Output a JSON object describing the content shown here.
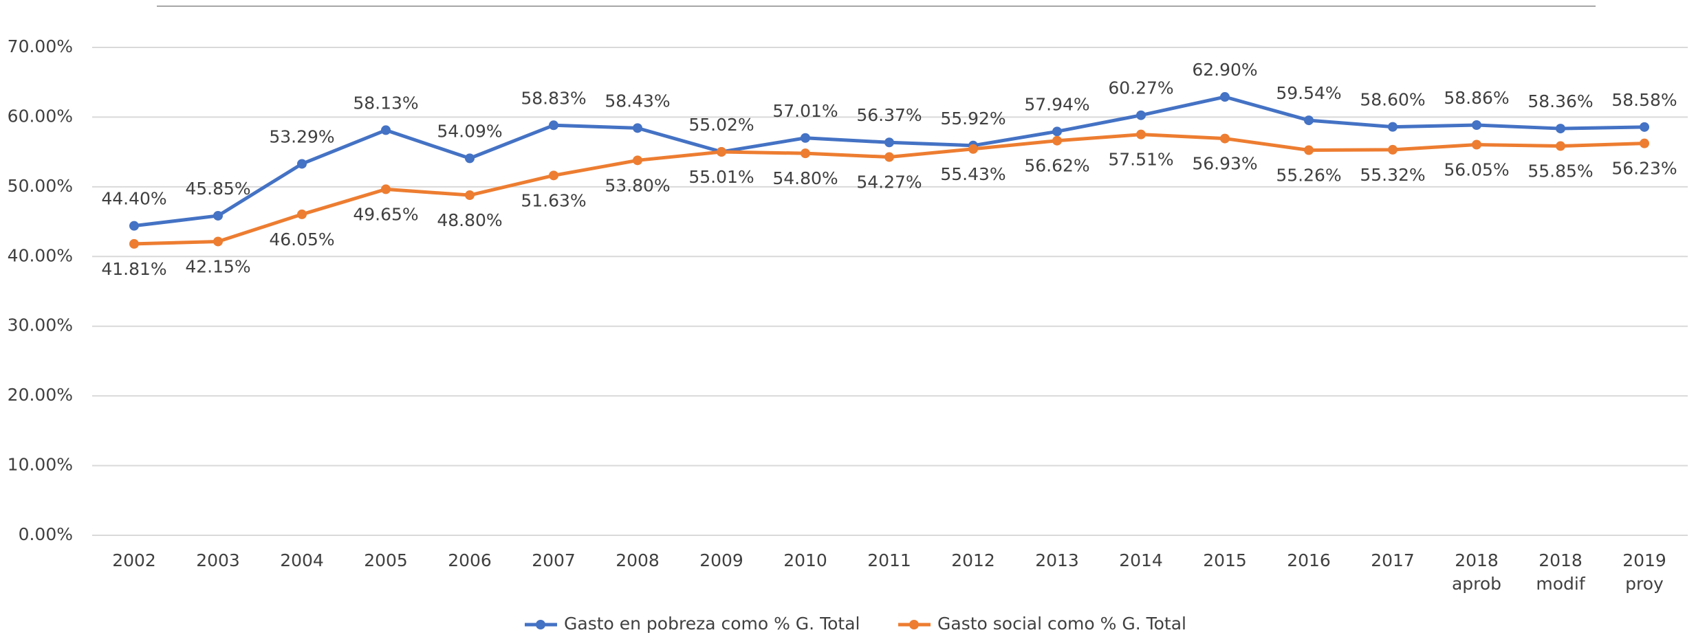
{
  "chart_data": {
    "type": "line",
    "categories": [
      "2002",
      "2003",
      "2004",
      "2005",
      "2006",
      "2007",
      "2008",
      "2009",
      "2010",
      "2011",
      "2012",
      "2013",
      "2014",
      "2015",
      "2016",
      "2017",
      "2018 aprob",
      "2018 modif",
      "2019 proy"
    ],
    "series": [
      {
        "name": "Gasto en pobreza como % G. Total",
        "color": "#4472c4",
        "values": [
          44.4,
          45.85,
          53.29,
          58.13,
          54.09,
          58.83,
          58.43,
          55.02,
          57.01,
          56.37,
          55.92,
          57.94,
          60.27,
          62.9,
          59.54,
          58.6,
          58.86,
          58.36,
          58.58
        ],
        "value_labels": [
          "44.40%",
          "45.85%",
          "53.29%",
          "58.13%",
          "54.09%",
          "58.83%",
          "58.43%",
          "55.02%",
          "57.01%",
          "56.37%",
          "55.92%",
          "57.94%",
          "60.27%",
          "62.90%",
          "59.54%",
          "58.60%",
          "58.86%",
          "58.36%",
          "58.58%"
        ]
      },
      {
        "name": "Gasto social como % G. Total",
        "color": "#ed7d31",
        "values": [
          41.81,
          42.15,
          46.05,
          49.65,
          48.8,
          51.63,
          53.8,
          55.01,
          54.8,
          54.27,
          55.43,
          56.62,
          57.51,
          56.93,
          55.26,
          55.32,
          56.05,
          55.85,
          56.23
        ],
        "value_labels": [
          "41.81%",
          "42.15%",
          "46.05%",
          "49.65%",
          "48.80%",
          "51.63%",
          "53.80%",
          "55.01%",
          "54.80%",
          "54.27%",
          "55.43%",
          "56.62%",
          "57.51%",
          "56.93%",
          "55.26%",
          "55.32%",
          "56.05%",
          "55.85%",
          "56.23%"
        ]
      }
    ],
    "ylim": [
      0,
      70
    ],
    "yticks": [
      {
        "value": 0,
        "label": "0.00%"
      },
      {
        "value": 10,
        "label": "10.00%"
      },
      {
        "value": 20,
        "label": "20.00%"
      },
      {
        "value": 30,
        "label": "30.00%"
      },
      {
        "value": 40,
        "label": "40.00%"
      },
      {
        "value": 50,
        "label": "50.00%"
      },
      {
        "value": 60,
        "label": "60.00%"
      },
      {
        "value": 70,
        "label": "70.00%"
      }
    ],
    "grid": true,
    "legend": "bottom"
  }
}
